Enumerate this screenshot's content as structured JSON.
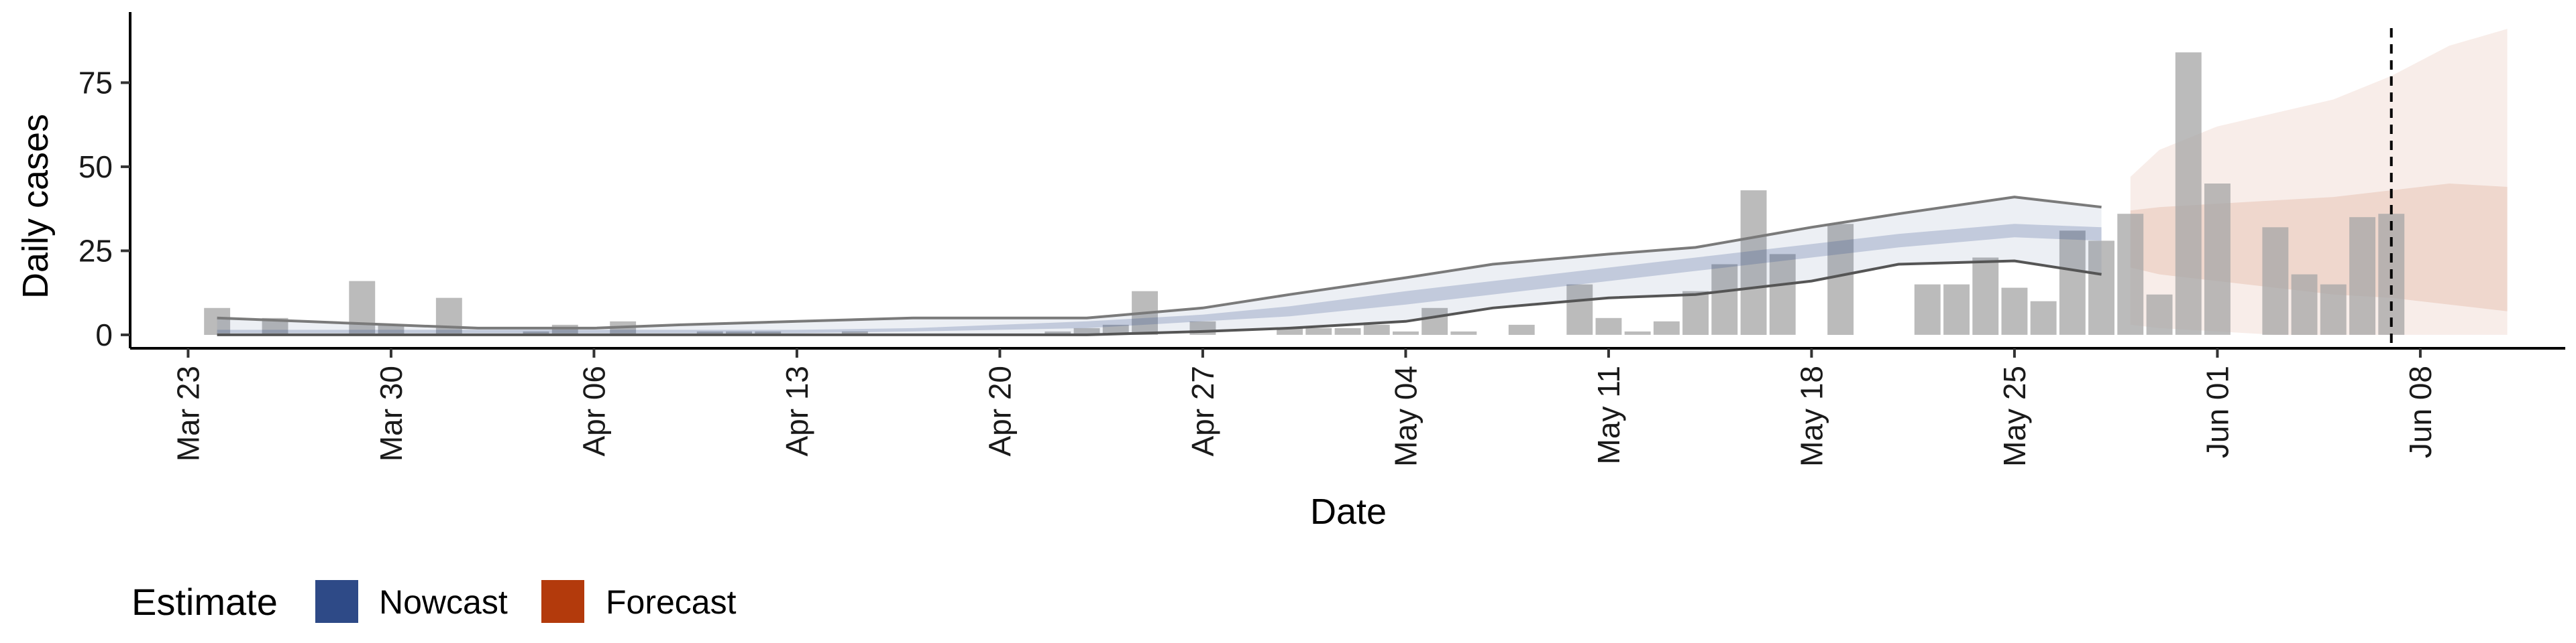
{
  "chart_data": {
    "type": "bar",
    "xlabel": "Date",
    "ylabel": "Daily cases",
    "x_ticks": [
      "Mar 23",
      "Mar 30",
      "Apr 06",
      "Apr 13",
      "Apr 20",
      "Apr 27",
      "May 04",
      "May 11",
      "May 18",
      "May 25",
      "Jun 01",
      "Jun 08"
    ],
    "y_ticks": [
      "0",
      "25",
      "50",
      "75"
    ],
    "x_range": [
      "2020-03-21",
      "2020-06-13"
    ],
    "ylim": [
      -4,
      96
    ],
    "grid": false,
    "vline_date": "2020-06-07",
    "reported_cases": {
      "dates": [
        "2020-03-24",
        "2020-03-26",
        "2020-03-29",
        "2020-03-30",
        "2020-04-01",
        "2020-04-04",
        "2020-04-05",
        "2020-04-07",
        "2020-04-10",
        "2020-04-11",
        "2020-04-12",
        "2020-04-15",
        "2020-04-22",
        "2020-04-23",
        "2020-04-24",
        "2020-04-25",
        "2020-04-27",
        "2020-04-30",
        "2020-05-01",
        "2020-05-02",
        "2020-05-03",
        "2020-05-04",
        "2020-05-05",
        "2020-05-06",
        "2020-05-08",
        "2020-05-10",
        "2020-05-11",
        "2020-05-12",
        "2020-05-13",
        "2020-05-14",
        "2020-05-15",
        "2020-05-16",
        "2020-05-17",
        "2020-05-19",
        "2020-05-22",
        "2020-05-23",
        "2020-05-24",
        "2020-05-25",
        "2020-05-26",
        "2020-05-27",
        "2020-05-28",
        "2020-05-29",
        "2020-05-30",
        "2020-05-31",
        "2020-06-01",
        "2020-06-03",
        "2020-06-04",
        "2020-06-05",
        "2020-06-06",
        "2020-06-07"
      ],
      "values": [
        8,
        5,
        16,
        3,
        11,
        1,
        3,
        4,
        1,
        1,
        1,
        1,
        1,
        2,
        3,
        13,
        4,
        2,
        2,
        2,
        3,
        1,
        8,
        1,
        3,
        15,
        5,
        1,
        4,
        13,
        21,
        43,
        24,
        33,
        15,
        15,
        23,
        14,
        10,
        31,
        28,
        36,
        12,
        84,
        45,
        32,
        18,
        15,
        35,
        36
      ]
    },
    "series": [
      {
        "name": "Nowcast",
        "color": "#2e4a87",
        "dates": [
          "2020-03-24",
          "2020-03-27",
          "2020-03-30",
          "2020-04-02",
          "2020-04-06",
          "2020-04-09",
          "2020-04-13",
          "2020-04-17",
          "2020-04-20",
          "2020-04-23",
          "2020-04-27",
          "2020-04-30",
          "2020-05-04",
          "2020-05-07",
          "2020-05-11",
          "2020-05-14",
          "2020-05-18",
          "2020-05-21",
          "2020-05-25",
          "2020-05-28"
        ],
        "median": [
          1,
          1,
          1,
          1,
          1,
          1,
          1,
          1.5,
          2,
          3,
          5,
          7,
          11,
          14,
          18,
          21,
          25,
          28,
          31,
          30
        ],
        "inner_lower": [
          0.5,
          0.5,
          0.5,
          0.5,
          0.5,
          0.5,
          0.5,
          1,
          1.5,
          2,
          4,
          5.5,
          9,
          12,
          16,
          19,
          23,
          26,
          29,
          28
        ],
        "inner_upper": [
          1.5,
          1.5,
          1.5,
          1.5,
          1.5,
          1.5,
          1.5,
          2,
          3,
          4,
          6,
          8.5,
          13,
          16,
          20,
          23,
          27,
          30,
          33,
          32
        ],
        "outer_lower": [
          0,
          0,
          0,
          0,
          0,
          0,
          0,
          0,
          0,
          0,
          1,
          2,
          4,
          8,
          11,
          12,
          16,
          21,
          22,
          18
        ],
        "outer_upper": [
          5,
          4,
          3,
          2,
          2,
          3,
          4,
          5,
          5,
          5,
          8,
          12,
          17,
          21,
          24,
          26,
          32,
          36,
          41,
          38
        ]
      },
      {
        "name": "Forecast",
        "color": "#b33a0c",
        "dates": [
          "2020-05-29",
          "2020-05-30",
          "2020-06-01",
          "2020-06-03",
          "2020-06-05",
          "2020-06-07",
          "2020-06-09",
          "2020-06-11"
        ],
        "inner_lower": [
          20,
          18,
          16,
          14,
          12,
          11,
          9,
          7
        ],
        "inner_upper": [
          37,
          38,
          39,
          40,
          41,
          43,
          45,
          44
        ],
        "outer_lower": [
          3,
          2,
          1,
          0,
          0,
          0,
          0,
          0
        ],
        "outer_upper": [
          47,
          55,
          62,
          66,
          70,
          77,
          86,
          91
        ]
      }
    ],
    "legend": {
      "title": "Estimate",
      "position": "bottom",
      "items": [
        "Nowcast",
        "Forecast"
      ]
    }
  }
}
